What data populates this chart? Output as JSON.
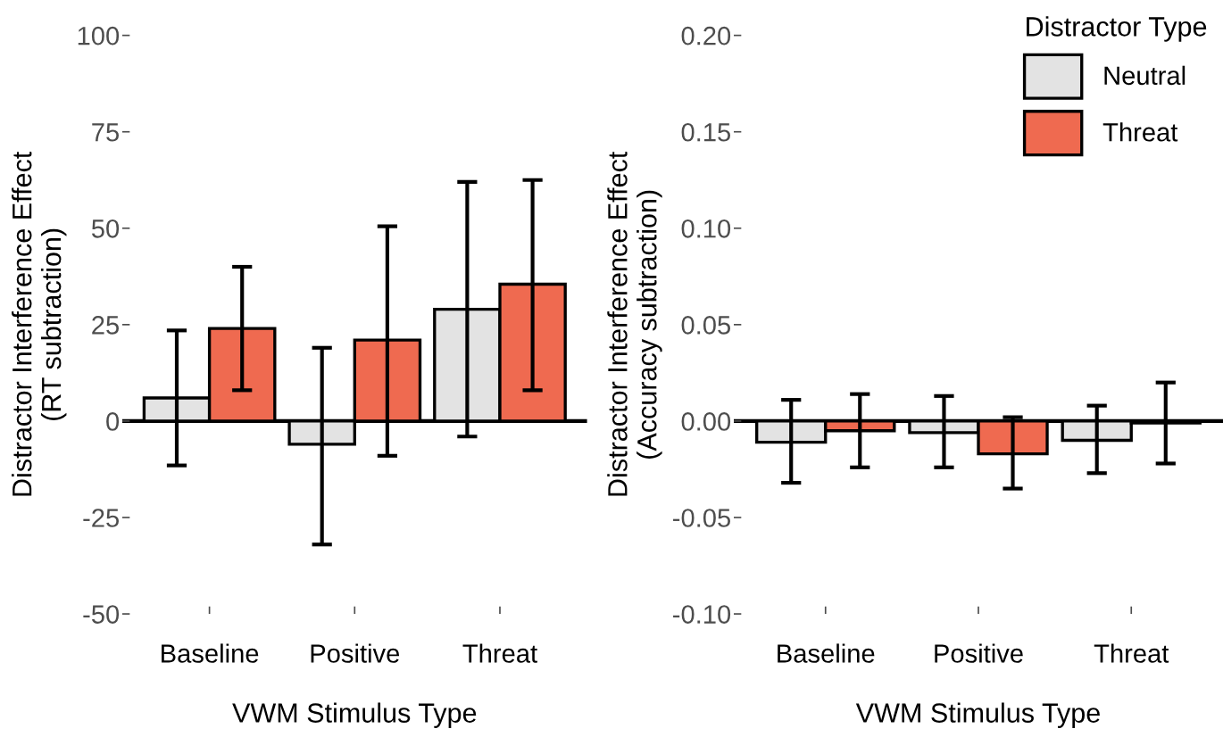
{
  "chart_data": [
    {
      "type": "bar",
      "xlabel": "VWM Stimulus Type",
      "ylabel": "Distractor Interference Effect\n(RT subtraction)",
      "categories": [
        "Baseline",
        "Positive",
        "Threat"
      ],
      "series": [
        {
          "color": "#e3e3e3",
          "values": [
            6,
            -6,
            29
          ],
          "errors": [
            [
              -11.5,
              23.5
            ],
            [
              -32,
              19
            ],
            [
              -4,
              62
            ]
          ]
        },
        {
          "color": "#ef6a50",
          "values": [
            24,
            21,
            35.5
          ],
          "errors": [
            [
              8,
              40
            ],
            [
              -9,
              50.5
            ],
            [
              8,
              62.5
            ]
          ]
        }
      ],
      "ylim": [
        -50,
        100
      ],
      "yticks": [
        {
          "value": -50,
          "label": "-50"
        },
        {
          "value": -25,
          "label": "-25"
        },
        0,
        25,
        50,
        75,
        100
      ],
      "ref_lines": [
        {
          "axis": "y",
          "value": 0,
          "color": "#000000"
        }
      ],
      "grid": false
    },
    {
      "type": "bar",
      "xlabel": "VWM Stimulus Type",
      "ylabel": "Distractor Interference Effect\n(Accuracy subtraction)",
      "legend_title": "Distractor Type",
      "categories": [
        "Baseline",
        "Positive",
        "Threat"
      ],
      "series": [
        {
          "name": "Neutral",
          "color": "#e3e3e3",
          "values": [
            -0.011,
            -0.006,
            -0.01
          ],
          "errors": [
            [
              -0.032,
              0.011
            ],
            [
              -0.024,
              0.013
            ],
            [
              -0.027,
              0.008
            ]
          ]
        },
        {
          "name": "Threat",
          "color": "#ef6a50",
          "values": [
            -0.005,
            -0.017,
            -0.001
          ],
          "errors": [
            [
              -0.024,
              0.014
            ],
            [
              -0.035,
              0.002
            ],
            [
              -0.022,
              0.02
            ]
          ]
        }
      ],
      "ylim": [
        -0.1,
        0.2
      ],
      "yticks": [
        {
          "value": -0.1,
          "label": "-0.10"
        },
        {
          "value": -0.05,
          "label": "-0.05"
        },
        {
          "value": 0,
          "label": "0.00"
        },
        {
          "value": 0.05,
          "label": "0.05"
        },
        {
          "value": 0.1,
          "label": "0.10"
        },
        {
          "value": 0.15,
          "label": "0.15"
        },
        {
          "value": 0.2,
          "label": "0.20"
        }
      ],
      "ref_lines": [
        {
          "axis": "y",
          "value": 0,
          "color": "#000000"
        }
      ],
      "grid": false,
      "legend": "top right"
    }
  ]
}
